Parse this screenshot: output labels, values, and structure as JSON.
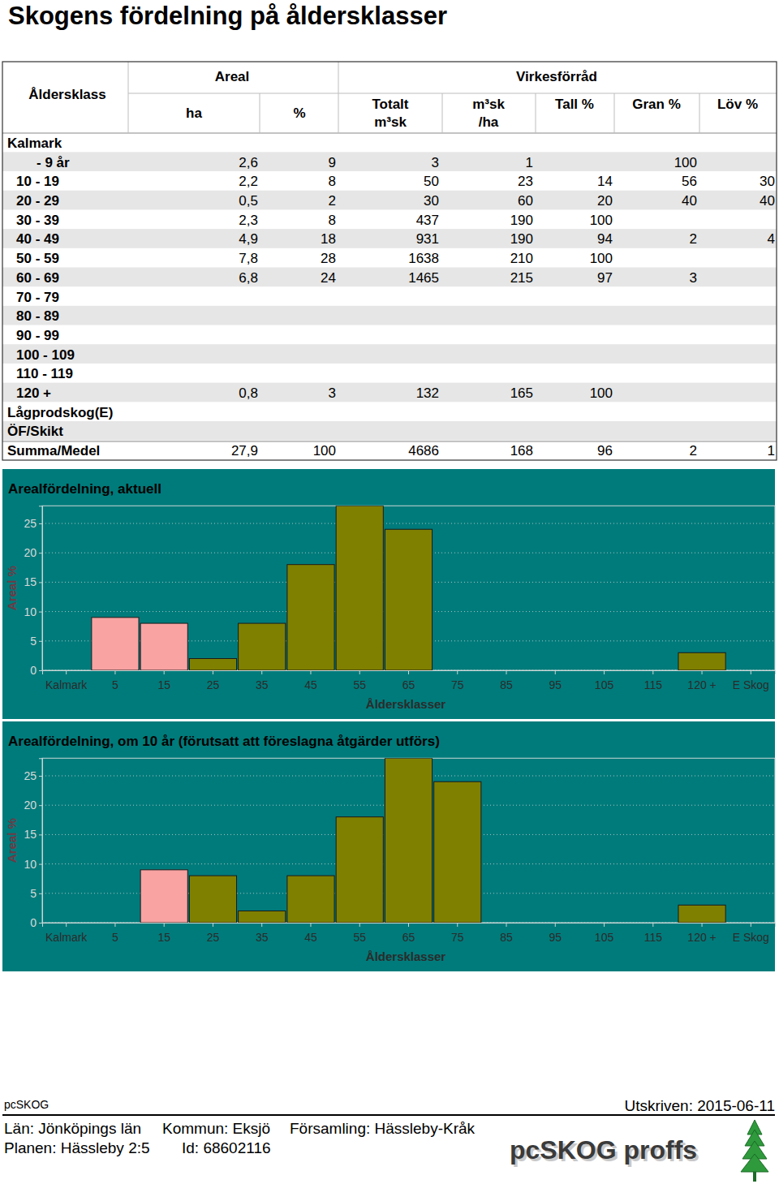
{
  "title": "Skogens fördelning på åldersklasser",
  "table": {
    "header": {
      "row_label": "Åldersklass",
      "areal": "Areal",
      "virkesforrad": "Virkesförråd",
      "columns": [
        [
          "ha"
        ],
        [
          "%"
        ],
        [
          "Totalt",
          "m³sk"
        ],
        [
          "m³sk",
          "/ha"
        ],
        [
          "Tall %"
        ],
        [
          "Gran %"
        ],
        [
          "Löv %"
        ]
      ]
    },
    "rows": [
      [
        "Kalmark",
        null,
        null,
        null,
        null,
        null,
        null,
        null
      ],
      [
        "- 9 år",
        "2,6",
        "9",
        "3",
        "1",
        null,
        "100",
        null
      ],
      [
        "10 - 19",
        "2,2",
        "8",
        "50",
        "23",
        "14",
        "56",
        "30"
      ],
      [
        "20 - 29",
        "0,5",
        "2",
        "30",
        "60",
        "20",
        "40",
        "40"
      ],
      [
        "30 - 39",
        "2,3",
        "8",
        "437",
        "190",
        "100",
        null,
        null
      ],
      [
        "40 - 49",
        "4,9",
        "18",
        "931",
        "190",
        "94",
        "2",
        "4"
      ],
      [
        "50 - 59",
        "7,8",
        "28",
        "1638",
        "210",
        "100",
        null,
        null
      ],
      [
        "60 - 69",
        "6,8",
        "24",
        "1465",
        "215",
        "97",
        "3",
        null
      ],
      [
        "70 - 79",
        null,
        null,
        null,
        null,
        null,
        null,
        null
      ],
      [
        "80 - 89",
        null,
        null,
        null,
        null,
        null,
        null,
        null
      ],
      [
        "90 - 99",
        null,
        null,
        null,
        null,
        null,
        null,
        null
      ],
      [
        "100 - 109",
        null,
        null,
        null,
        null,
        null,
        null,
        null
      ],
      [
        "110 - 119",
        null,
        null,
        null,
        null,
        null,
        null,
        null
      ],
      [
        "120 +",
        "0,8",
        "3",
        "132",
        "165",
        "100",
        null,
        null
      ],
      [
        "Lågprodskog(E)",
        null,
        null,
        null,
        null,
        null,
        null,
        null
      ],
      [
        "ÖF/Skikt",
        null,
        null,
        null,
        null,
        null,
        null,
        null
      ],
      [
        "Summa/Medel",
        "27,9",
        "100",
        "4686",
        "168",
        "96",
        "2",
        "1"
      ]
    ]
  },
  "chart_data": [
    {
      "type": "bar",
      "title": "Arealfördelning, aktuell",
      "y_label": "Areal %",
      "x_label": "Åldersklasser",
      "categories": [
        "Kalmark",
        "5",
        "15",
        "25",
        "35",
        "45",
        "55",
        "65",
        "75",
        "85",
        "95",
        "105",
        "115",
        "120 +",
        "E Skog"
      ],
      "values": [
        0,
        9,
        8,
        2,
        8,
        18,
        28,
        24,
        null,
        null,
        null,
        null,
        null,
        3,
        null
      ],
      "colors": [
        "#808000",
        "#f9a3a3",
        "#f9a3a3",
        "#808000",
        "#808000",
        "#808000",
        "#808000",
        "#808000",
        "#808000",
        "#808000",
        "#808000",
        "#808000",
        "#808000",
        "#808000",
        "#808000"
      ],
      "ylim": [
        0,
        28
      ],
      "yticks": [
        0,
        5,
        10,
        15,
        20,
        25
      ],
      "grid": true
    },
    {
      "type": "bar",
      "title": "Arealfördelning, om 10 år (förutsatt att föreslagna åtgärder utförs)",
      "y_label": "Areal %",
      "x_label": "Åldersklasser",
      "categories": [
        "Kalmark",
        "5",
        "15",
        "25",
        "35",
        "45",
        "55",
        "65",
        "75",
        "85",
        "95",
        "105",
        "115",
        "120 +",
        "E Skog"
      ],
      "values": [
        0,
        0,
        9,
        8,
        2,
        8,
        18,
        28,
        24,
        null,
        null,
        null,
        null,
        3,
        null
      ],
      "colors": [
        "#808000",
        "#808000",
        "#f9a3a3",
        "#808000",
        "#808000",
        "#808000",
        "#808000",
        "#808000",
        "#808000",
        "#808000",
        "#808000",
        "#808000",
        "#808000",
        "#808000",
        "#808000"
      ],
      "ylim": [
        0,
        28
      ],
      "yticks": [
        0,
        5,
        10,
        15,
        20,
        25
      ],
      "grid": true
    }
  ],
  "footer": {
    "program": "pcSKOG",
    "printed": "Utskriven: 2015-06-11",
    "location": [
      "Län: Jönköpings län",
      "Kommun: Eksjö",
      "Församling: Hässleby-Kråk"
    ],
    "plan": [
      "Planen: Hässleby 2:5",
      "Id: 68602116"
    ],
    "brand": "pcSKOG proffs"
  }
}
